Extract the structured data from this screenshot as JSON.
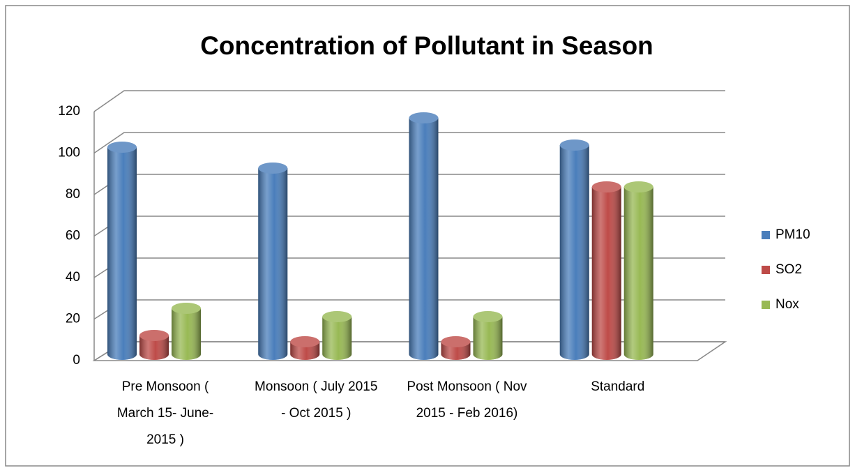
{
  "chart_data": {
    "type": "bar3d",
    "title": "Concentration of Pollutant in Season",
    "categories": [
      "Pre Monsoon ( March 15- June- 2015 )",
      "Monsoon ( July 2015 - Oct 2015 )",
      "Post Monsoon ( Nov 2015 - Feb 2016)",
      "Standard"
    ],
    "series": [
      {
        "name": "PM10",
        "color": "#4a7ebb",
        "values": [
          99,
          89,
          113,
          100
        ]
      },
      {
        "name": "SO2",
        "color": "#be4b48",
        "values": [
          9,
          6,
          6,
          80
        ]
      },
      {
        "name": "Nox",
        "color": "#98b954",
        "values": [
          22,
          18,
          18,
          80
        ]
      }
    ],
    "ylim": [
      0,
      120
    ],
    "yticks": [
      0,
      20,
      40,
      60,
      80,
      100,
      120
    ],
    "grid": true,
    "legend": "right"
  }
}
